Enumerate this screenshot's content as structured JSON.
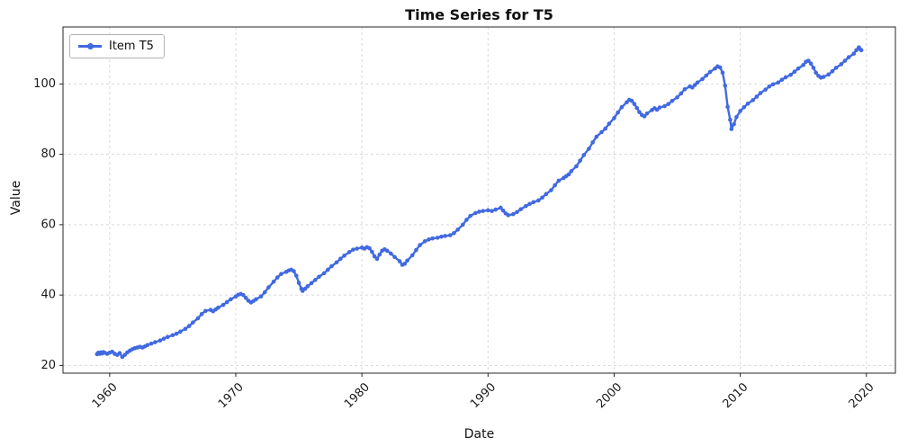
{
  "figure": {
    "title": "Time Series for T5"
  },
  "colors": {
    "line": "#4169e1",
    "grid": "#d9d9d9",
    "axis": "#262626",
    "text": "#1a1a1a",
    "background": "#ffffff",
    "legend_border": "#b3b3b3"
  },
  "legend": {
    "entries": [
      {
        "label": "Item T5",
        "color": "#4169e1"
      }
    ]
  },
  "chart_data": {
    "type": "line",
    "title": "Time Series for T5",
    "xlabel": "Date",
    "ylabel": "Value",
    "xlim": [
      1956.3,
      2022.3
    ],
    "ylim": [
      17.8,
      116.2
    ],
    "xticks": [
      1960,
      1970,
      1980,
      1990,
      2000,
      2010,
      2020
    ],
    "yticks": [
      20,
      40,
      60,
      80,
      100
    ],
    "grid": true,
    "legend_position": "upper left",
    "series": [
      {
        "name": "Item T5",
        "color": "#4169e1",
        "marker": "circle",
        "points": [
          [
            1959.0,
            23.2
          ],
          [
            1959.1,
            23.6
          ],
          [
            1959.2,
            23.3
          ],
          [
            1959.3,
            23.7
          ],
          [
            1959.4,
            23.4
          ],
          [
            1959.5,
            23.8
          ],
          [
            1959.6,
            23.6
          ],
          [
            1959.8,
            23.3
          ],
          [
            1960.0,
            23.6
          ],
          [
            1960.2,
            23.9
          ],
          [
            1960.4,
            23.3
          ],
          [
            1960.6,
            23.0
          ],
          [
            1960.8,
            23.5
          ],
          [
            1961.0,
            22.4
          ],
          [
            1961.2,
            23.0
          ],
          [
            1961.4,
            23.7
          ],
          [
            1961.6,
            24.2
          ],
          [
            1961.8,
            24.6
          ],
          [
            1962.0,
            24.9
          ],
          [
            1962.2,
            25.1
          ],
          [
            1962.4,
            25.3
          ],
          [
            1962.6,
            25.1
          ],
          [
            1962.8,
            25.4
          ],
          [
            1963.0,
            25.8
          ],
          [
            1963.3,
            26.2
          ],
          [
            1963.6,
            26.6
          ],
          [
            1964.0,
            27.1
          ],
          [
            1964.3,
            27.6
          ],
          [
            1964.6,
            28.1
          ],
          [
            1965.0,
            28.6
          ],
          [
            1965.3,
            29.0
          ],
          [
            1965.6,
            29.6
          ],
          [
            1966.0,
            30.4
          ],
          [
            1966.3,
            31.2
          ],
          [
            1966.6,
            32.2
          ],
          [
            1967.0,
            33.4
          ],
          [
            1967.3,
            34.6
          ],
          [
            1967.6,
            35.5
          ],
          [
            1968.0,
            35.8
          ],
          [
            1968.2,
            35.4
          ],
          [
            1968.4,
            35.9
          ],
          [
            1968.6,
            36.4
          ],
          [
            1969.0,
            37.2
          ],
          [
            1969.3,
            38.0
          ],
          [
            1969.6,
            38.8
          ],
          [
            1970.0,
            39.6
          ],
          [
            1970.2,
            40.1
          ],
          [
            1970.4,
            40.3
          ],
          [
            1970.6,
            40.0
          ],
          [
            1970.8,
            39.2
          ],
          [
            1971.0,
            38.4
          ],
          [
            1971.2,
            37.9
          ],
          [
            1971.4,
            38.3
          ],
          [
            1971.6,
            38.8
          ],
          [
            1972.0,
            39.6
          ],
          [
            1972.3,
            40.8
          ],
          [
            1972.6,
            42.2
          ],
          [
            1973.0,
            43.8
          ],
          [
            1973.3,
            45.0
          ],
          [
            1973.6,
            46.0
          ],
          [
            1974.0,
            46.6
          ],
          [
            1974.2,
            47.0
          ],
          [
            1974.4,
            47.2
          ],
          [
            1974.6,
            46.8
          ],
          [
            1974.8,
            45.5
          ],
          [
            1975.0,
            43.5
          ],
          [
            1975.2,
            41.8
          ],
          [
            1975.3,
            41.2
          ],
          [
            1975.5,
            41.8
          ],
          [
            1975.7,
            42.5
          ],
          [
            1976.0,
            43.4
          ],
          [
            1976.3,
            44.3
          ],
          [
            1976.6,
            45.2
          ],
          [
            1977.0,
            46.2
          ],
          [
            1977.3,
            47.2
          ],
          [
            1977.6,
            48.2
          ],
          [
            1978.0,
            49.3
          ],
          [
            1978.3,
            50.3
          ],
          [
            1978.6,
            51.2
          ],
          [
            1979.0,
            52.2
          ],
          [
            1979.3,
            52.9
          ],
          [
            1979.6,
            53.2
          ],
          [
            1980.0,
            53.5
          ],
          [
            1980.2,
            53.2
          ],
          [
            1980.4,
            53.6
          ],
          [
            1980.6,
            53.3
          ],
          [
            1980.8,
            52.3
          ],
          [
            1981.0,
            51.0
          ],
          [
            1981.2,
            50.3
          ],
          [
            1981.4,
            51.5
          ],
          [
            1981.6,
            52.6
          ],
          [
            1981.8,
            53.0
          ],
          [
            1982.0,
            52.6
          ],
          [
            1982.3,
            51.8
          ],
          [
            1982.6,
            50.8
          ],
          [
            1983.0,
            49.6
          ],
          [
            1983.2,
            48.6
          ],
          [
            1983.4,
            48.9
          ],
          [
            1983.6,
            49.8
          ],
          [
            1984.0,
            51.3
          ],
          [
            1984.3,
            52.8
          ],
          [
            1984.6,
            54.2
          ],
          [
            1985.0,
            55.3
          ],
          [
            1985.3,
            55.8
          ],
          [
            1985.6,
            56.1
          ],
          [
            1986.0,
            56.3
          ],
          [
            1986.3,
            56.6
          ],
          [
            1986.6,
            56.8
          ],
          [
            1987.0,
            57.0
          ],
          [
            1987.3,
            57.6
          ],
          [
            1987.6,
            58.6
          ],
          [
            1988.0,
            60.0
          ],
          [
            1988.3,
            61.4
          ],
          [
            1988.6,
            62.5
          ],
          [
            1989.0,
            63.3
          ],
          [
            1989.3,
            63.7
          ],
          [
            1989.6,
            63.9
          ],
          [
            1990.0,
            64.1
          ],
          [
            1990.3,
            63.9
          ],
          [
            1990.6,
            64.3
          ],
          [
            1991.0,
            64.8
          ],
          [
            1991.2,
            64.0
          ],
          [
            1991.4,
            63.2
          ],
          [
            1991.6,
            62.7
          ],
          [
            1992.0,
            63.0
          ],
          [
            1992.3,
            63.6
          ],
          [
            1992.6,
            64.4
          ],
          [
            1993.0,
            65.3
          ],
          [
            1993.3,
            65.9
          ],
          [
            1993.6,
            66.4
          ],
          [
            1994.0,
            66.9
          ],
          [
            1994.3,
            67.7
          ],
          [
            1994.6,
            68.7
          ],
          [
            1995.0,
            69.8
          ],
          [
            1995.3,
            71.2
          ],
          [
            1995.6,
            72.5
          ],
          [
            1996.0,
            73.3
          ],
          [
            1996.2,
            73.8
          ],
          [
            1996.4,
            74.3
          ],
          [
            1996.6,
            75.2
          ],
          [
            1997.0,
            76.6
          ],
          [
            1997.3,
            78.2
          ],
          [
            1997.6,
            79.8
          ],
          [
            1998.0,
            81.6
          ],
          [
            1998.3,
            83.4
          ],
          [
            1998.6,
            85.0
          ],
          [
            1999.0,
            86.3
          ],
          [
            1999.3,
            87.3
          ],
          [
            1999.6,
            88.7
          ],
          [
            2000.0,
            90.3
          ],
          [
            2000.3,
            91.9
          ],
          [
            2000.6,
            93.4
          ],
          [
            2001.0,
            94.8
          ],
          [
            2001.2,
            95.5
          ],
          [
            2001.4,
            95.2
          ],
          [
            2001.6,
            94.3
          ],
          [
            2001.8,
            93.2
          ],
          [
            2002.0,
            92.0
          ],
          [
            2002.2,
            91.2
          ],
          [
            2002.4,
            90.8
          ],
          [
            2002.6,
            91.6
          ],
          [
            2003.0,
            92.6
          ],
          [
            2003.2,
            93.1
          ],
          [
            2003.4,
            92.7
          ],
          [
            2003.6,
            93.3
          ],
          [
            2004.0,
            93.7
          ],
          [
            2004.3,
            94.3
          ],
          [
            2004.6,
            95.2
          ],
          [
            2005.0,
            96.2
          ],
          [
            2005.3,
            97.3
          ],
          [
            2005.6,
            98.5
          ],
          [
            2006.0,
            99.3
          ],
          [
            2006.2,
            99.0
          ],
          [
            2006.4,
            99.7
          ],
          [
            2006.6,
            100.4
          ],
          [
            2007.0,
            101.4
          ],
          [
            2007.3,
            102.4
          ],
          [
            2007.6,
            103.4
          ],
          [
            2008.0,
            104.4
          ],
          [
            2008.2,
            105.0
          ],
          [
            2008.4,
            104.7
          ],
          [
            2008.6,
            103.2
          ],
          [
            2008.8,
            99.5
          ],
          [
            2009.0,
            93.5
          ],
          [
            2009.2,
            89.8
          ],
          [
            2009.3,
            87.2
          ],
          [
            2009.5,
            88.6
          ],
          [
            2009.7,
            90.6
          ],
          [
            2010.0,
            92.3
          ],
          [
            2010.3,
            93.4
          ],
          [
            2010.6,
            94.4
          ],
          [
            2011.0,
            95.4
          ],
          [
            2011.3,
            96.4
          ],
          [
            2011.6,
            97.4
          ],
          [
            2012.0,
            98.4
          ],
          [
            2012.3,
            99.3
          ],
          [
            2012.6,
            99.9
          ],
          [
            2013.0,
            100.4
          ],
          [
            2013.3,
            101.2
          ],
          [
            2013.6,
            101.9
          ],
          [
            2014.0,
            102.6
          ],
          [
            2014.3,
            103.5
          ],
          [
            2014.6,
            104.4
          ],
          [
            2015.0,
            105.4
          ],
          [
            2015.2,
            106.3
          ],
          [
            2015.4,
            106.6
          ],
          [
            2015.6,
            105.8
          ],
          [
            2015.8,
            104.6
          ],
          [
            2016.0,
            103.2
          ],
          [
            2016.2,
            102.3
          ],
          [
            2016.4,
            101.8
          ],
          [
            2016.6,
            102.0
          ],
          [
            2017.0,
            102.7
          ],
          [
            2017.3,
            103.6
          ],
          [
            2017.6,
            104.6
          ],
          [
            2018.0,
            105.6
          ],
          [
            2018.3,
            106.6
          ],
          [
            2018.6,
            107.6
          ],
          [
            2019.0,
            108.6
          ],
          [
            2019.2,
            109.6
          ],
          [
            2019.4,
            110.4
          ],
          [
            2019.5,
            109.9
          ],
          [
            2019.6,
            109.6
          ]
        ]
      }
    ]
  }
}
